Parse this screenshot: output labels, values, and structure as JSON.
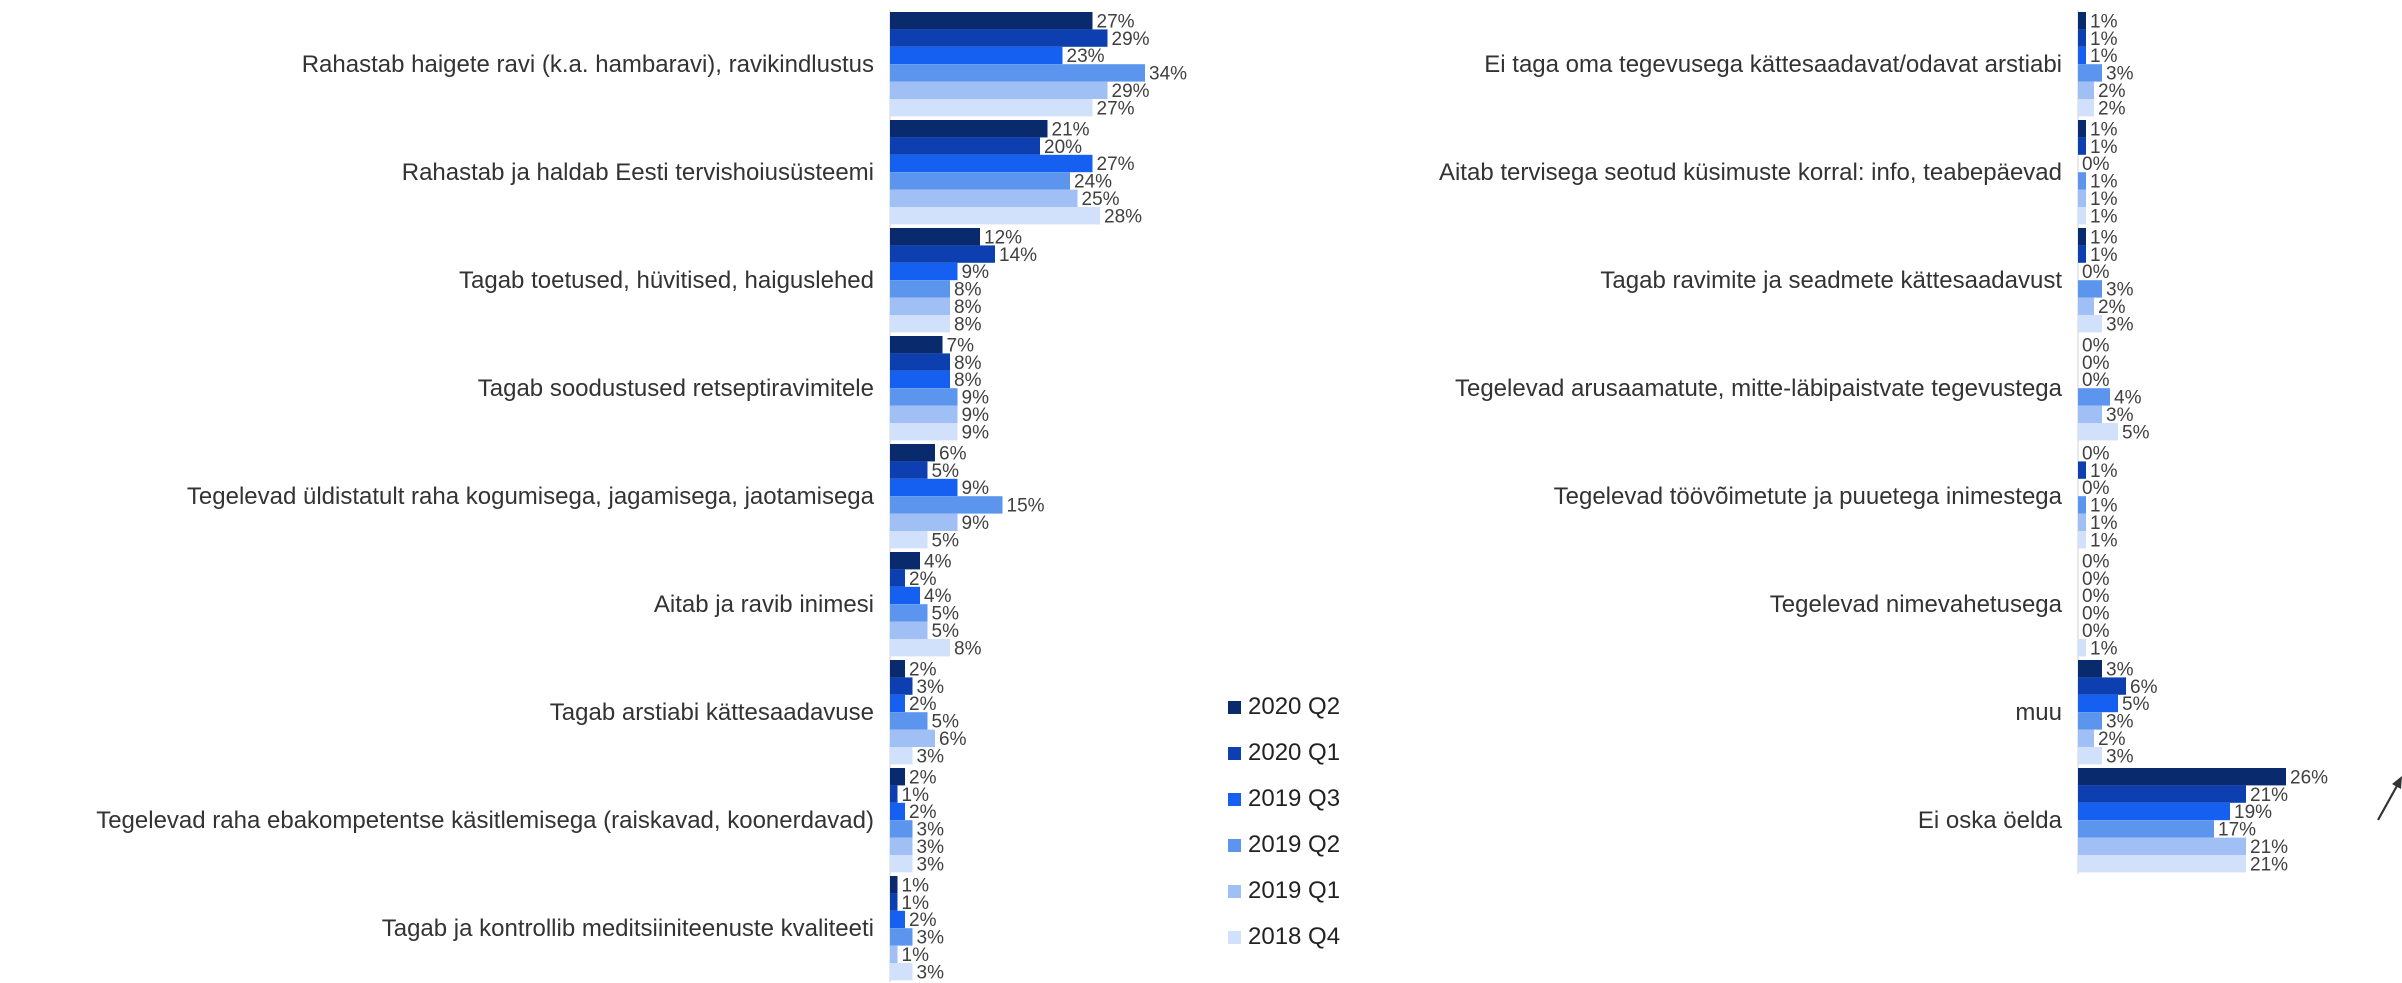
{
  "chart_data": [
    {
      "type": "bar",
      "orientation": "horizontal",
      "categories": [
        "Rahastab haigete ravi (k.a. hambaravi), ravikindlustus",
        "Rahastab ja haldab Eesti tervishoiusüsteemi",
        "Tagab toetused, hüvitised, haiguslehed",
        "Tagab soodustused retseptiravimitele",
        "Tegelevad üldistatult raha kogumisega, jagamisega, jaotamisega",
        "Aitab ja ravib inimesi",
        "Tagab arstiabi kättesaadavuse",
        "Tegelevad raha ebakompetentse käsitlemisega (raiskavad, koonerdavad)",
        "Tagab ja kontrollib meditsiiniteenuste kvaliteeti"
      ],
      "series": [
        {
          "name": "2020 Q2",
          "color": "#0a2a6e",
          "values": [
            27,
            21,
            12,
            7,
            6,
            4,
            2,
            2,
            1
          ]
        },
        {
          "name": "2020 Q1",
          "color": "#0d3fb0",
          "values": [
            29,
            20,
            14,
            8,
            5,
            2,
            3,
            1,
            1
          ]
        },
        {
          "name": "2019 Q3",
          "color": "#1560f0",
          "values": [
            23,
            27,
            9,
            8,
            9,
            4,
            2,
            2,
            2
          ]
        },
        {
          "name": "2019 Q2",
          "color": "#5b95ee",
          "values": [
            34,
            24,
            8,
            9,
            15,
            5,
            5,
            3,
            3
          ]
        },
        {
          "name": "2019 Q1",
          "color": "#9fbff5",
          "values": [
            29,
            25,
            8,
            9,
            9,
            5,
            6,
            3,
            1
          ]
        },
        {
          "name": "2018 Q4",
          "color": "#d2e1fb",
          "values": [
            27,
            28,
            8,
            9,
            5,
            8,
            3,
            3,
            3
          ]
        }
      ],
      "value_suffix": "%",
      "xlim": [
        0,
        40
      ]
    },
    {
      "type": "bar",
      "orientation": "horizontal",
      "categories": [
        "Ei taga oma tegevusega kättesaadavat/odavat arstiabi",
        "Aitab tervisega seotud küsimuste korral: info, teabepäevad",
        "Tagab ravimite ja seadmete kättesaadavust",
        "Tegelevad arusaamatute, mitte-läbipaistvate tegevustega",
        "Tegelevad töövõimetute ja puuetega inimestega",
        "Tegelevad nimevahetusega",
        "muu",
        "Ei oska öelda"
      ],
      "series": [
        {
          "name": "2020 Q2",
          "color": "#0a2a6e",
          "values": [
            1,
            1,
            1,
            0,
            0,
            0,
            3,
            26
          ]
        },
        {
          "name": "2020 Q1",
          "color": "#0d3fb0",
          "values": [
            1,
            1,
            1,
            0,
            1,
            0,
            6,
            21
          ]
        },
        {
          "name": "2019 Q3",
          "color": "#1560f0",
          "values": [
            1,
            0,
            0,
            0,
            0,
            0,
            5,
            19
          ]
        },
        {
          "name": "2019 Q2",
          "color": "#5b95ee",
          "values": [
            3,
            1,
            3,
            4,
            1,
            0,
            3,
            17
          ]
        },
        {
          "name": "2019 Q1",
          "color": "#9fbff5",
          "values": [
            2,
            1,
            2,
            3,
            1,
            0,
            2,
            21
          ]
        },
        {
          "name": "2018 Q4",
          "color": "#d2e1fb",
          "values": [
            2,
            1,
            3,
            5,
            1,
            1,
            3,
            21
          ]
        }
      ],
      "value_suffix": "%",
      "xlim": [
        0,
        40
      ]
    }
  ],
  "legend": {
    "position": "center",
    "items": [
      "2020 Q2",
      "2020 Q1",
      "2019 Q3",
      "2019 Q2",
      "2019 Q1",
      "2018 Q4"
    ]
  }
}
